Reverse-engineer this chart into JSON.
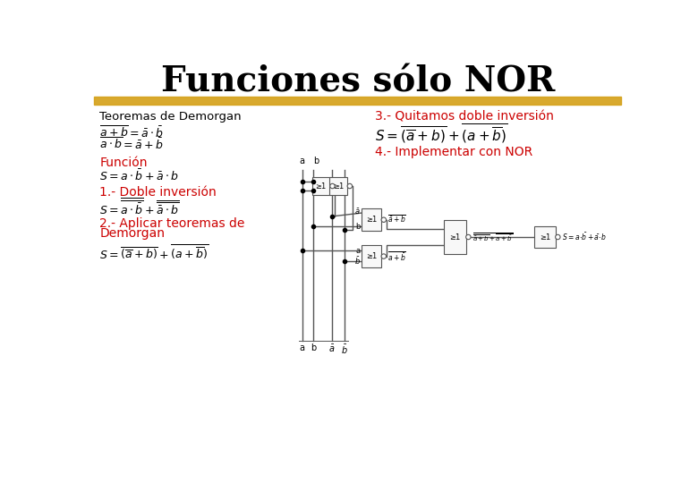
{
  "title": "Funciones sólo NOR",
  "title_fontsize": 28,
  "title_color": "#000000",
  "bg_color": "#ffffff",
  "gold_bar_color": "#D4A017",
  "red_color": "#CC0000",
  "black_color": "#000000",
  "line_color": "#555555",
  "texts": {
    "teoremas_label": "Teoremas de Demorgan",
    "funcion_label": "Función",
    "doble_inv_label": "1.- Doble inversión",
    "aplicar_label": "2.- Aplicar teoremas de",
    "aplicar_label2": "Demorgan",
    "quitar_label": "3.- Quitamos doble inversión",
    "implementar_label": "4.- Implementar con NOR"
  }
}
